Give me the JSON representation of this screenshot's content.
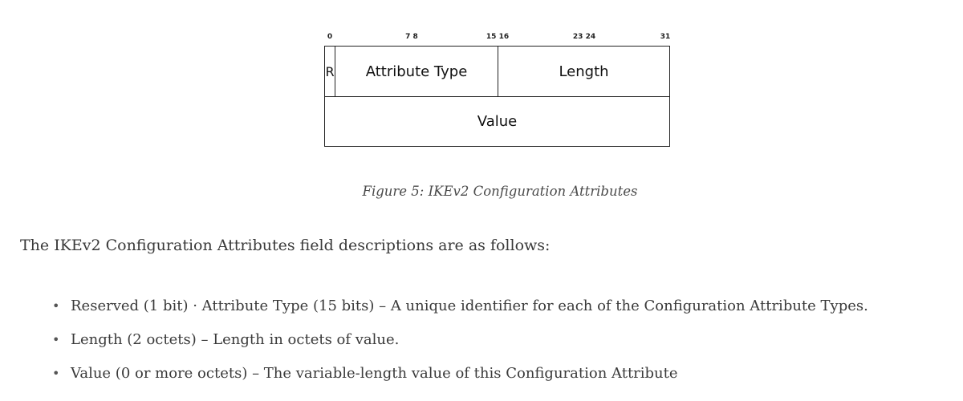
{
  "figure": {
    "bit_labels": [
      "0",
      "7  8",
      "15 16",
      "23 24",
      "31"
    ],
    "fields": {
      "reserved": "R",
      "attribute_type": "Attribute Type",
      "length": "Length",
      "value": "Value"
    },
    "caption": "Figure 5: IKEv2 Configuration Attributes"
  },
  "intro": "The IKEv2 Configuration Attributes field descriptions are as follows:",
  "field_descriptions": [
    "Reserved (1 bit) · Attribute Type (15 bits) – A unique identifier for each of the Configuration Attribute Types.",
    "Length (2 octets) – Length in octets of value.",
    "Value (0 or more octets) – The variable-length value of this Configuration Attribute"
  ]
}
